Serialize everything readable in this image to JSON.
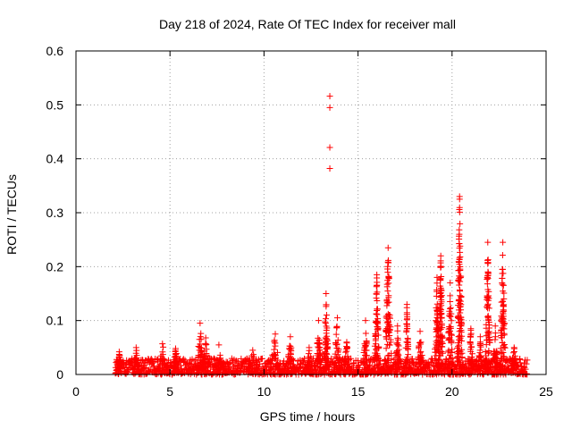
{
  "chart_data": {
    "type": "scatter",
    "title": "Day 218 of 2024, Rate Of TEC Index for receiver mall",
    "xlabel": "GPS time / hours",
    "ylabel": "ROTI / TECUs",
    "xlim": [
      0,
      25
    ],
    "ylim": [
      0,
      0.6
    ],
    "x_ticks": [
      "0",
      "5",
      "10",
      "15",
      "20",
      "25"
    ],
    "y_ticks": [
      "0",
      "0.1",
      "0.2",
      "0.3",
      "0.4",
      "0.5",
      "0.6"
    ],
    "grid": true,
    "marker": "plus",
    "color": "#ff0000",
    "data_range_hours": [
      2.1,
      24.0
    ],
    "background_max": 0.03,
    "activity_bursts": [
      {
        "x": 2.3,
        "peak": 0.042,
        "width": 0.2
      },
      {
        "x": 3.2,
        "peak": 0.05,
        "width": 0.25
      },
      {
        "x": 4.6,
        "peak": 0.057,
        "width": 0.35
      },
      {
        "x": 5.3,
        "peak": 0.048,
        "width": 0.2
      },
      {
        "x": 6.6,
        "peak": 0.095,
        "width": 0.2
      },
      {
        "x": 6.9,
        "peak": 0.068,
        "width": 0.25
      },
      {
        "x": 7.6,
        "peak": 0.055,
        "width": 0.3
      },
      {
        "x": 9.4,
        "peak": 0.045,
        "width": 0.3
      },
      {
        "x": 10.6,
        "peak": 0.075,
        "width": 0.3
      },
      {
        "x": 11.4,
        "peak": 0.07,
        "width": 0.2
      },
      {
        "x": 12.4,
        "peak": 0.05,
        "width": 0.2
      },
      {
        "x": 12.9,
        "peak": 0.1,
        "width": 0.15
      },
      {
        "x": 13.3,
        "peak": 0.15,
        "width": 0.15
      },
      {
        "x": 13.9,
        "peak": 0.105,
        "width": 0.2
      },
      {
        "x": 14.4,
        "peak": 0.06,
        "width": 0.2
      },
      {
        "x": 15.4,
        "peak": 0.1,
        "width": 0.15
      },
      {
        "x": 16.0,
        "peak": 0.185,
        "width": 0.15
      },
      {
        "x": 16.6,
        "peak": 0.235,
        "width": 0.2
      },
      {
        "x": 17.1,
        "peak": 0.09,
        "width": 0.15
      },
      {
        "x": 17.6,
        "peak": 0.13,
        "width": 0.1
      },
      {
        "x": 18.3,
        "peak": 0.08,
        "width": 0.2
      },
      {
        "x": 19.2,
        "peak": 0.18,
        "width": 0.15
      },
      {
        "x": 19.4,
        "peak": 0.22,
        "width": 0.15
      },
      {
        "x": 19.9,
        "peak": 0.17,
        "width": 0.15
      },
      {
        "x": 20.4,
        "peak": 0.33,
        "width": 0.15
      },
      {
        "x": 21.0,
        "peak": 0.085,
        "width": 0.15
      },
      {
        "x": 21.5,
        "peak": 0.07,
        "width": 0.15
      },
      {
        "x": 21.9,
        "peak": 0.245,
        "width": 0.15
      },
      {
        "x": 22.3,
        "peak": 0.09,
        "width": 0.15
      },
      {
        "x": 22.7,
        "peak": 0.245,
        "width": 0.15
      },
      {
        "x": 23.3,
        "peak": 0.05,
        "width": 0.2
      }
    ],
    "outliers": [
      {
        "x": 13.5,
        "y": 0.516
      },
      {
        "x": 13.5,
        "y": 0.495
      },
      {
        "x": 13.5,
        "y": 0.421
      },
      {
        "x": 13.5,
        "y": 0.382
      }
    ]
  }
}
